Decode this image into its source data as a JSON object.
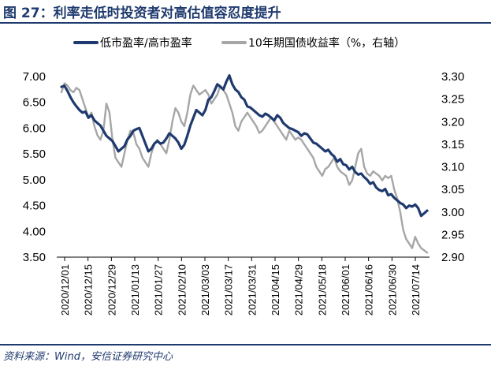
{
  "header": {
    "title": "图 27：利率走低时投资者对高估值容忍度提升"
  },
  "footer": {
    "source": "资料来源：Wind，安信证券研究中心"
  },
  "colors": {
    "series_pe": "#1f3a6e",
    "series_yield": "#a6a6a6",
    "title": "#1f3a6e"
  },
  "chart_data": {
    "type": "line",
    "title": "图 27：利率走低时投资者对高估值容忍度提升",
    "x_tick_labels": [
      "2020/12/01",
      "2020/12/15",
      "2020/12/29",
      "2021/01/13",
      "2021/01/27",
      "2021/02/10",
      "2021/03/03",
      "2021/03/17",
      "2021/03/31",
      "2021/04/15",
      "2021/04/29",
      "2021/05/18",
      "2021/06/01",
      "2021/06/16",
      "2021/06/30",
      "2021/07/14"
    ],
    "y_left": {
      "ticks": [
        "3.50",
        "4.00",
        "4.50",
        "5.00",
        "5.50",
        "6.00",
        "6.50",
        "7.00"
      ],
      "lim": [
        3.5,
        7.0
      ]
    },
    "y_right": {
      "ticks": [
        "2.90",
        "2.95",
        "3.00",
        "3.05",
        "3.10",
        "3.15",
        "3.20",
        "3.25",
        "3.30"
      ],
      "lim": [
        2.9,
        3.3
      ]
    },
    "legend": {
      "position": "top"
    },
    "series": [
      {
        "name": "低市盈率/高市盈率",
        "axis": "left",
        "values": [
          6.8,
          6.82,
          6.72,
          6.6,
          6.5,
          6.42,
          6.35,
          6.3,
          6.32,
          6.2,
          6.25,
          6.15,
          6.1,
          6.05,
          5.95,
          5.85,
          5.8,
          5.75,
          5.65,
          5.55,
          5.6,
          5.65,
          5.78,
          5.85,
          5.95,
          5.98,
          6.0,
          5.85,
          5.7,
          5.55,
          5.6,
          5.7,
          5.75,
          5.7,
          5.72,
          5.8,
          5.9,
          5.85,
          5.8,
          5.72,
          5.6,
          5.68,
          5.85,
          6.05,
          6.2,
          6.35,
          6.3,
          6.25,
          6.35,
          6.55,
          6.6,
          6.72,
          6.85,
          6.8,
          6.75,
          6.9,
          7.02,
          6.85,
          6.75,
          6.7,
          6.6,
          6.55,
          6.42,
          6.4,
          6.35,
          6.3,
          6.25,
          6.22,
          6.28,
          6.25,
          6.2,
          6.15,
          6.25,
          6.2,
          6.1,
          6.05,
          6.0,
          5.98,
          5.95,
          5.92,
          5.85,
          5.9,
          5.88,
          5.8,
          5.72,
          5.7,
          5.65,
          5.6,
          5.55,
          5.58,
          5.5,
          5.45,
          5.35,
          5.4,
          5.3,
          5.28,
          5.2,
          5.25,
          5.15,
          5.1,
          5.12,
          5.05,
          5.0,
          4.92,
          4.95,
          4.85,
          4.8,
          4.78,
          4.82,
          4.7,
          4.72,
          4.65,
          4.6,
          4.55,
          4.52,
          4.45,
          4.5,
          4.48,
          4.52,
          4.45,
          4.3,
          4.35,
          4.4
        ]
      },
      {
        "name": "10年期国债收益率（%，右轴）",
        "axis": "right",
        "values": [
          3.265,
          3.285,
          3.28,
          3.27,
          3.265,
          3.275,
          3.27,
          3.25,
          3.23,
          3.21,
          3.22,
          3.19,
          3.17,
          3.16,
          3.18,
          3.24,
          3.22,
          3.16,
          3.12,
          3.11,
          3.1,
          3.13,
          3.16,
          3.18,
          3.175,
          3.15,
          3.14,
          3.12,
          3.11,
          3.1,
          3.13,
          3.15,
          3.16,
          3.15,
          3.14,
          3.13,
          3.16,
          3.2,
          3.23,
          3.22,
          3.2,
          3.19,
          3.22,
          3.26,
          3.28,
          3.27,
          3.26,
          3.265,
          3.27,
          3.26,
          3.24,
          3.25,
          3.26,
          3.28,
          3.27,
          3.26,
          3.24,
          3.22,
          3.19,
          3.18,
          3.2,
          3.21,
          3.22,
          3.21,
          3.2,
          3.19,
          3.175,
          3.18,
          3.19,
          3.2,
          3.21,
          3.2,
          3.19,
          3.18,
          3.17,
          3.16,
          3.18,
          3.17,
          3.16,
          3.165,
          3.16,
          3.15,
          3.14,
          3.13,
          3.12,
          3.1,
          3.09,
          3.08,
          3.095,
          3.1,
          3.11,
          3.12,
          3.1,
          3.09,
          3.085,
          3.08,
          3.06,
          3.07,
          3.1,
          3.13,
          3.14,
          3.1,
          3.085,
          3.08,
          3.09,
          3.085,
          3.08,
          3.07,
          3.08,
          3.075,
          3.08,
          3.05,
          3.03,
          3.0,
          2.96,
          2.94,
          2.93,
          2.92,
          2.945,
          2.93,
          2.92,
          2.915,
          2.91
        ]
      }
    ]
  }
}
